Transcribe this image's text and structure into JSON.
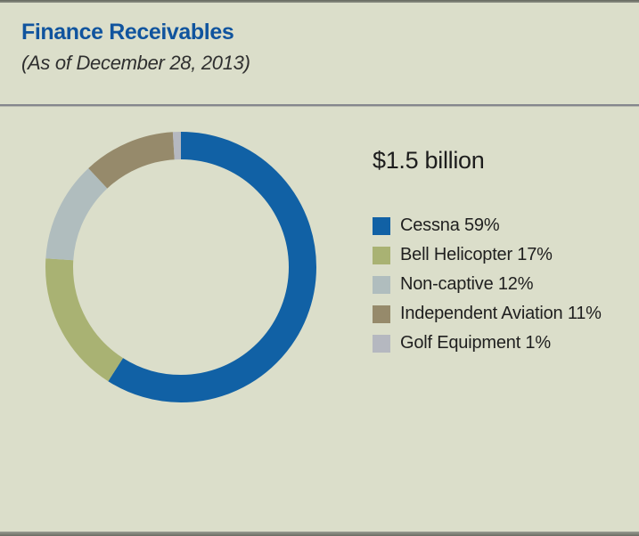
{
  "page": {
    "background_color": "#dbdeca",
    "rule_color": "#6d7066"
  },
  "header": {
    "title": "Finance Receivables",
    "subtitle": "(As of December 28, 2013)",
    "title_color": "#10549e"
  },
  "chart_data": {
    "type": "pie",
    "variant": "donut",
    "title": "Finance Receivables",
    "subtitle": "(As of December 28, 2013)",
    "total_label": "$1.5 billion",
    "start_angle_deg": 0,
    "direction": "clockwise",
    "legend_position": "right-of-chart",
    "ring": {
      "outer_radius_px": 152,
      "thickness_px": 31
    },
    "segments": [
      {
        "label": "Cessna",
        "value": 59,
        "unit": "%",
        "color": "#1161a5"
      },
      {
        "label": "Bell Helicopter",
        "value": 17,
        "unit": "%",
        "color": "#a9b273"
      },
      {
        "label": "Non-captive",
        "value": 12,
        "unit": "%",
        "color": "#b0bdbe"
      },
      {
        "label": "Independent Aviation",
        "value": 11,
        "unit": "%",
        "color": "#968a6b"
      },
      {
        "label": "Golf Equipment",
        "value": 1,
        "unit": "%",
        "color": "#b5b8c0"
      }
    ]
  }
}
